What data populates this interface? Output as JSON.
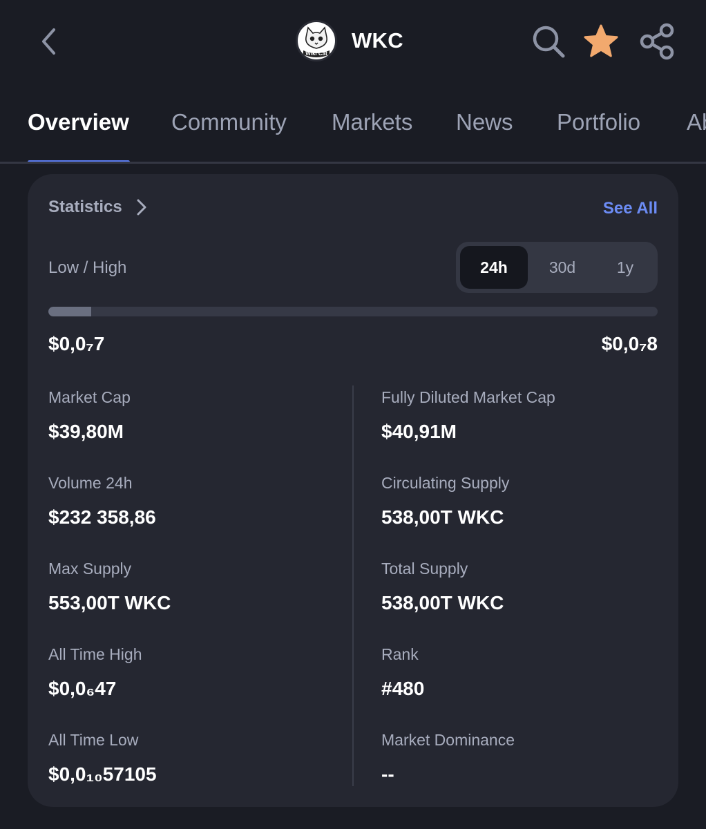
{
  "header": {
    "coin_symbol": "WKC",
    "logo_text": "Wiki Cat",
    "icons": [
      "back-chevron-icon",
      "search-icon",
      "star-icon",
      "share-icon"
    ],
    "star_color": "#f2a96e"
  },
  "tabs": [
    {
      "label": "Overview",
      "active": true
    },
    {
      "label": "Community"
    },
    {
      "label": "Markets"
    },
    {
      "label": "News"
    },
    {
      "label": "Portfolio"
    },
    {
      "label": "Ab"
    }
  ],
  "statistics": {
    "title": "Statistics",
    "see_all": "See All",
    "low_high_label": "Low / High",
    "periods": [
      {
        "label": "24h",
        "active": true
      },
      {
        "label": "30d"
      },
      {
        "label": "1y"
      }
    ],
    "range": {
      "low": "$0,0₇7",
      "high": "$0,0₇8",
      "position": 0.07
    },
    "items": [
      {
        "label": "Market Cap",
        "value": "$39,80M"
      },
      {
        "label": "Fully Diluted Market Cap",
        "value": "$40,91M"
      },
      {
        "label": "Volume 24h",
        "value": "$232 358,86"
      },
      {
        "label": "Circulating Supply",
        "value": "538,00T WKC"
      },
      {
        "label": "Max Supply",
        "value": "553,00T WKC"
      },
      {
        "label": "Total Supply",
        "value": "538,00T WKC"
      },
      {
        "label": "All Time High",
        "value": "$0,0₆47"
      },
      {
        "label": "Rank",
        "value": "#480"
      },
      {
        "label": "All Time Low",
        "value": "$0,0₁₀57105"
      },
      {
        "label": "Market Dominance",
        "value": "--"
      }
    ]
  },
  "colors": {
    "background": "#1a1c24",
    "card": "#252731",
    "accent": "#5b7cf0",
    "link": "#6c8cf5"
  }
}
